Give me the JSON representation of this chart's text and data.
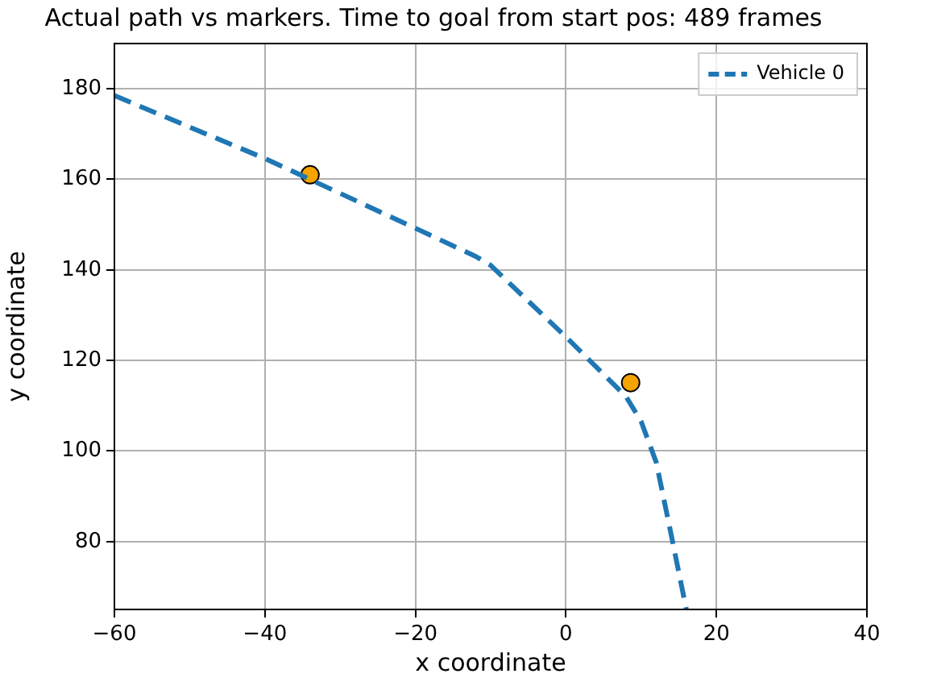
{
  "chart_data": {
    "type": "line",
    "title": "Actual path vs markers. Time to goal from start pos: 489 frames",
    "xlabel": "x coordinate",
    "ylabel": "y coordinate",
    "series": [
      {
        "name": "Vehicle 0",
        "type": "line",
        "color": "#1f77b4",
        "line_style": "dashed",
        "marker": "none",
        "x": [
          -60,
          -40,
          -20,
          -12,
          -10,
          0,
          8,
          10,
          12,
          14,
          16
        ],
        "values": [
          178.5,
          164.6,
          149.2,
          143,
          141,
          125.2,
          112,
          106.5,
          97.5,
          81.4,
          65
        ]
      },
      {
        "type": "scatter",
        "color": "#f5a300",
        "marker": "circle",
        "x": [
          -34,
          8.6
        ],
        "values": [
          161,
          115.1
        ]
      }
    ],
    "xlim": [
      -60,
      40
    ],
    "xticks": [
      -60,
      -40,
      -20,
      0,
      20,
      40
    ],
    "ylim": [
      65,
      190
    ],
    "yticks": [
      80,
      100,
      120,
      140,
      160,
      180
    ],
    "grid": true,
    "legend": "top right"
  }
}
